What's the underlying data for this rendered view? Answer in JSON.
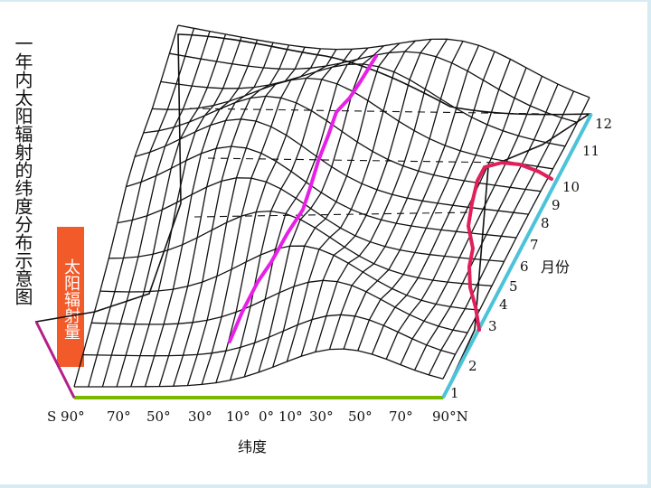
{
  "title": "一年内太阳辐射的纬度分布示意图",
  "yaxis_label": "太阳辐射量",
  "xaxis_label": "纬度",
  "month_axis_label": "月份",
  "latitude_ticks": [
    "S 90°",
    "70°",
    "50°",
    "30°",
    "10°",
    "0°",
    "10°",
    "30°",
    "50°",
    "70°",
    "90°N"
  ],
  "month_ticks": [
    "1",
    "2",
    "3",
    "4",
    "5",
    "6",
    "7",
    "8",
    "9",
    "10",
    "11",
    "12"
  ],
  "colors": {
    "latitude_axis": "#7ab800",
    "month_axis": "#4cc3d9",
    "direct_sun_curve": "#e620e6",
    "north_pole_curve": "#e0205a",
    "label_box": "#f25a2a",
    "mesh": "#111111"
  }
}
